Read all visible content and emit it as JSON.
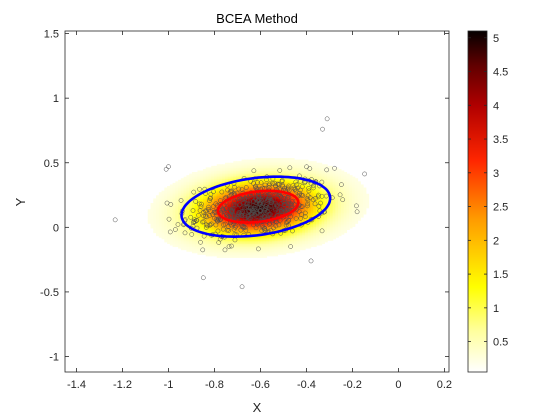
{
  "chart_data": {
    "type": "scatter",
    "title": "BCEA Method",
    "xlabel": "X",
    "ylabel": "Y",
    "xlim": [
      -1.45,
      0.22
    ],
    "ylim": [
      -1.12,
      1.52
    ],
    "x_ticks": [
      -1.4,
      -1.2,
      -1,
      -0.8,
      -0.6,
      -0.4,
      -0.2,
      0,
      0.2
    ],
    "x_tick_labels": [
      "-1.4",
      "-1.2",
      "-1",
      "-0.8",
      "-0.6",
      "-0.4",
      "-0.2",
      "0",
      "0.2"
    ],
    "y_ticks": [
      1.5,
      1,
      0.5,
      0,
      -0.5,
      -1
    ],
    "y_tick_labels": [
      "1.5",
      "1",
      "0.5",
      "0",
      "-0.5",
      "-1"
    ],
    "grid": false,
    "series": [
      {
        "kind": "scatter",
        "marker": "open-circle",
        "color": "#4d4d4d",
        "count_approx": 550,
        "center": [
          -0.61,
          0.15
        ],
        "spread_sd": [
          0.14,
          0.11
        ],
        "correlation": 0.3,
        "outliers": [
          [
            -0.68,
            -0.46
          ],
          [
            -0.31,
            0.84
          ],
          [
            -0.33,
            0.76
          ],
          [
            -0.38,
            -0.26
          ],
          [
            -1.0,
            0.47
          ],
          [
            -1.01,
            0.45
          ]
        ]
      },
      {
        "kind": "ellipse",
        "color": "#ff0000",
        "center": [
          -0.61,
          0.16
        ],
        "semi_axes": [
          0.18,
          0.115
        ],
        "angle_deg": 18
      },
      {
        "kind": "ellipse",
        "color": "#0000ff",
        "center": [
          -0.62,
          0.16
        ],
        "semi_axes": [
          0.335,
          0.215
        ],
        "angle_deg": 20
      }
    ],
    "density": {
      "kind": "heatmap",
      "colormap": "hot-reversed",
      "center": [
        -0.61,
        0.15
      ],
      "sd": [
        0.17,
        0.13
      ],
      "angle_deg": 18,
      "peak": 5.1
    },
    "colorbar": {
      "range": [
        0.05,
        5.1
      ],
      "ticks": [
        0.5,
        1,
        1.5,
        2,
        2.5,
        3,
        3.5,
        4,
        4.5,
        5
      ],
      "tick_labels": [
        "0.5",
        "1",
        "1.5",
        "2",
        "2.5",
        "3",
        "3.5",
        "4",
        "4.5",
        "5"
      ]
    }
  },
  "colors": {
    "axis": "#262626",
    "background": "#ffffff"
  }
}
